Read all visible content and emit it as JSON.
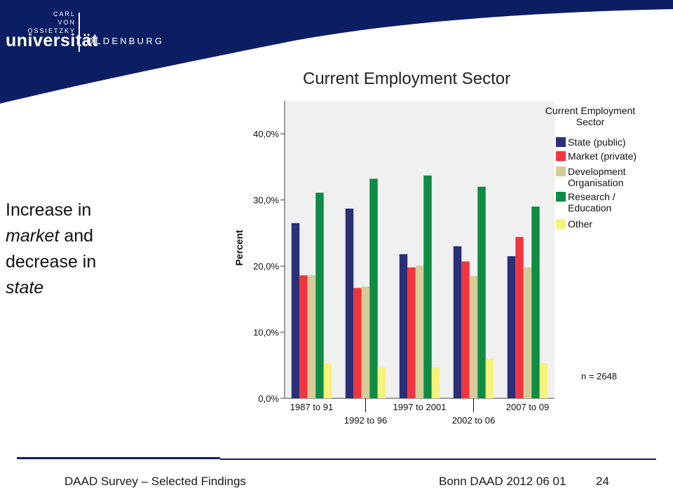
{
  "logo": {
    "line1": "CARL",
    "line2": "VON",
    "line3": "OSSIETZKY",
    "name": "universität",
    "city": "OLDENBURG"
  },
  "side_text": {
    "w1": "Increase in",
    "w2": "market",
    "w3": " and",
    "w4": "decrease in",
    "w5": "state"
  },
  "chart_data": {
    "type": "bar",
    "title": "Current Employment Sector",
    "ylabel": "Percent",
    "xlabel": "",
    "ylim": [
      0,
      45
    ],
    "yticks": [
      0,
      10,
      20,
      30,
      40
    ],
    "ytick_labels": [
      "0,0%",
      "10,0%",
      "20,0%",
      "30,0%",
      "40,0%"
    ],
    "categories": [
      "1987 to 91",
      "1992 to 96",
      "1997 to 2001",
      "2002 to 06",
      "2007 to 09"
    ],
    "series": [
      {
        "name": "State (public)",
        "color": "#2a2f78",
        "values": [
          26.5,
          28.7,
          21.8,
          23.0,
          21.5
        ]
      },
      {
        "name": "Market (private)",
        "color": "#f0353f",
        "values": [
          18.6,
          16.7,
          19.8,
          20.7,
          24.4
        ]
      },
      {
        "name": "Development Organisation",
        "color": "#d6cc9a",
        "values": [
          18.6,
          16.9,
          20.1,
          18.5,
          19.8
        ]
      },
      {
        "name": "Research / Education",
        "color": "#0e8c44",
        "values": [
          31.1,
          33.2,
          33.7,
          32.0,
          29.0
        ]
      },
      {
        "name": "Other",
        "color": "#f7f27a",
        "values": [
          5.3,
          4.7,
          4.7,
          6.0,
          5.3
        ]
      }
    ],
    "legend_title": "Current Employment Sector",
    "legend_position": "right",
    "grid": false,
    "annotation": "n = 2648"
  },
  "footer": {
    "left": "DAAD Survey – Selected Findings",
    "center": "Bonn DAAD 2012 06 01",
    "page": "24"
  },
  "colors": {
    "brand_navy": "#0c1e63",
    "plot_background": "#f0f0f0"
  }
}
